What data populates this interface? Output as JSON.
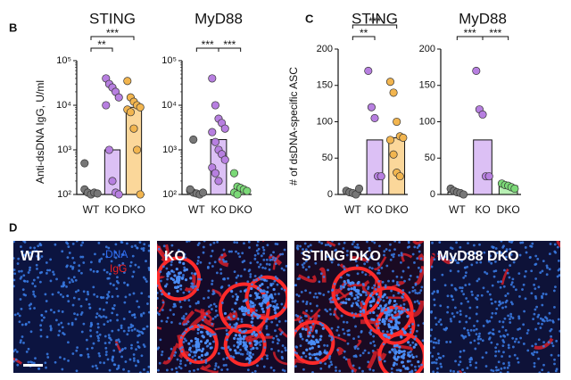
{
  "panel_labels": [
    "B",
    "C",
    "D"
  ],
  "chart_data": [
    {
      "type": "bar_dot",
      "title": "STING",
      "y_label": "Anti-dsDNA IgG, U/ml",
      "log_scale": true,
      "ylim": [
        100,
        100000
      ],
      "yticks": [
        {
          "value": 100,
          "label": "10²"
        },
        {
          "value": 1000,
          "label": "10³"
        },
        {
          "value": 10000,
          "label": "10⁴"
        },
        {
          "value": 100000,
          "label": "10⁵"
        }
      ],
      "categories": [
        "WT",
        "KO",
        "DKO"
      ],
      "values": [
        120,
        1000,
        9000
      ],
      "points": [
        [
          130,
          110,
          100,
          110,
          105,
          500
        ],
        [
          40000,
          30000,
          25000,
          20000,
          15000,
          10000,
          1000,
          200,
          110,
          100
        ],
        [
          35000,
          15000,
          12000,
          10000,
          9000,
          8000,
          7000,
          3000,
          1000,
          100
        ]
      ],
      "colors": [
        "#777777",
        "#b77fe0",
        "#f2b54f"
      ],
      "bar_colors": [
        "#d0d0d0",
        "#dcc0f5",
        "#fbd79a"
      ],
      "significance": [
        {
          "between": [
            0,
            1
          ],
          "label": "**"
        },
        {
          "between": [
            0,
            2
          ],
          "label": "***"
        }
      ]
    },
    {
      "type": "bar_dot",
      "title": "MyD88",
      "log_scale": true,
      "ylim": [
        100,
        100000
      ],
      "yticks": [
        {
          "value": 100,
          "label": "10²"
        },
        {
          "value": 1000,
          "label": "10³"
        },
        {
          "value": 10000,
          "label": "10⁴"
        },
        {
          "value": 100000,
          "label": "10⁵"
        }
      ],
      "categories": [
        "WT",
        "KO",
        "DKO"
      ],
      "values": [
        120,
        1700,
        130
      ],
      "points": [
        [
          120,
          110,
          105,
          100,
          110,
          130,
          1700
        ],
        [
          40000,
          10000,
          5000,
          4000,
          3000,
          2500,
          1500,
          1000,
          800,
          600,
          400,
          300,
          200
        ],
        [
          300,
          150,
          140,
          130,
          120,
          110,
          100
        ]
      ],
      "colors": [
        "#777777",
        "#b77fe0",
        "#7bd977"
      ],
      "bar_colors": [
        "#d0d0d0",
        "#dcc0f5",
        "#b8f0b4"
      ],
      "significance": [
        {
          "between": [
            0,
            1
          ],
          "label": "***"
        },
        {
          "between": [
            1,
            2
          ],
          "label": "***"
        }
      ]
    },
    {
      "type": "bar_dot",
      "title": "STING",
      "y_label": "# of dsDNA-specific ASC",
      "log_scale": false,
      "ylim": [
        0,
        200
      ],
      "yticks": [
        0,
        50,
        100,
        150,
        200
      ],
      "categories": [
        "WT",
        "KO",
        "DKO"
      ],
      "values": [
        3,
        75,
        78
      ],
      "points": [
        [
          5,
          3,
          2,
          0,
          8
        ],
        [
          170,
          120,
          105,
          25,
          25
        ],
        [
          155,
          140,
          100,
          80,
          78,
          75,
          55,
          30,
          25
        ]
      ],
      "colors": [
        "#777777",
        "#b77fe0",
        "#f2b54f"
      ],
      "bar_colors": [
        "#d0d0d0",
        "#dcc0f5",
        "#fbd79a"
      ],
      "significance": [
        {
          "between": [
            0,
            1
          ],
          "label": "**"
        },
        {
          "between": [
            0,
            2
          ],
          "label": "***"
        }
      ]
    },
    {
      "type": "bar_dot",
      "title": "MyD88",
      "log_scale": false,
      "ylim": [
        0,
        200
      ],
      "yticks": [
        0,
        50,
        100,
        150,
        200
      ],
      "categories": [
        "WT",
        "KO",
        "DKO"
      ],
      "values": [
        3,
        75,
        12
      ],
      "points": [
        [
          8,
          5,
          3,
          2,
          0
        ],
        [
          170,
          117,
          110,
          25,
          25
        ],
        [
          15,
          13,
          12,
          10,
          8
        ]
      ],
      "colors": [
        "#777777",
        "#b77fe0",
        "#7bd977"
      ],
      "bar_colors": [
        "#d0d0d0",
        "#dcc0f5",
        "#b8f0b4"
      ],
      "significance": [
        {
          "between": [
            0,
            1
          ],
          "label": "***"
        },
        {
          "between": [
            1,
            2
          ],
          "label": "***"
        }
      ]
    }
  ],
  "images": [
    {
      "label": "WT",
      "legend": [
        "DNA",
        "IgG"
      ]
    },
    {
      "label": "KO"
    },
    {
      "label": "STING DKO"
    },
    {
      "label": "MyD88 DKO"
    }
  ]
}
